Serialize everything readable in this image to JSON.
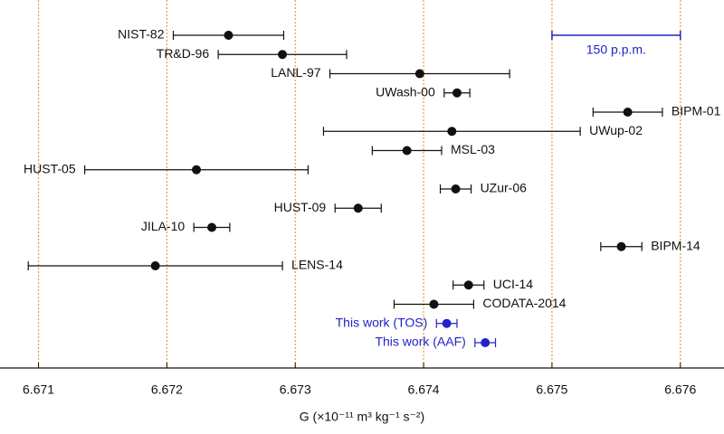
{
  "chart_data": {
    "type": "errorbar",
    "xlabel": "G (×10⁻¹¹ m³ kg⁻¹ s⁻²)",
    "xlim": [
      6.6707,
      6.67634
    ],
    "xticks": [
      6.671,
      6.672,
      6.673,
      6.674,
      6.675,
      6.676
    ],
    "grid": true,
    "categories": [
      "NIST-82",
      "TR&D-96",
      "LANL-97",
      "UWash-00",
      "BIPM-01",
      "UWup-02",
      "MSL-03",
      "HUST-05",
      "UZur-06",
      "HUST-09",
      "JILA-10",
      "BIPM-14",
      "LENS-14",
      "UCI-14",
      "CODATA-2014",
      "This work (TOS)",
      "This work (AAF)"
    ],
    "values": [
      6.67248,
      6.6729,
      6.67397,
      6.67426,
      6.67559,
      6.67422,
      6.67387,
      6.67223,
      6.67425,
      6.67349,
      6.67235,
      6.67554,
      6.67191,
      6.67435,
      6.67408,
      6.67418,
      6.67448
    ],
    "errors": [
      0.00043,
      0.0005,
      0.0007,
      0.0001,
      0.00027,
      0.001,
      0.00027,
      0.00087,
      0.00012,
      0.00018,
      0.00014,
      0.00016,
      0.00099,
      0.00012,
      0.00031,
      8e-05,
      8e-05
    ],
    "label_side": [
      "left",
      "left",
      "left",
      "left",
      "right",
      "right",
      "right",
      "left",
      "right",
      "left",
      "left",
      "right",
      "right",
      "right",
      "right",
      "left",
      "left"
    ],
    "colors": [
      "#111111",
      "#111111",
      "#111111",
      "#111111",
      "#111111",
      "#111111",
      "#111111",
      "#111111",
      "#111111",
      "#111111",
      "#111111",
      "#111111",
      "#111111",
      "#111111",
      "#111111",
      "#2323c8",
      "#2323c8"
    ],
    "grid_color": "#e0a040",
    "scale_bar": {
      "label": "150 p.p.m.",
      "x": [
        6.675,
        6.676
      ],
      "color": "#2323c8"
    }
  }
}
